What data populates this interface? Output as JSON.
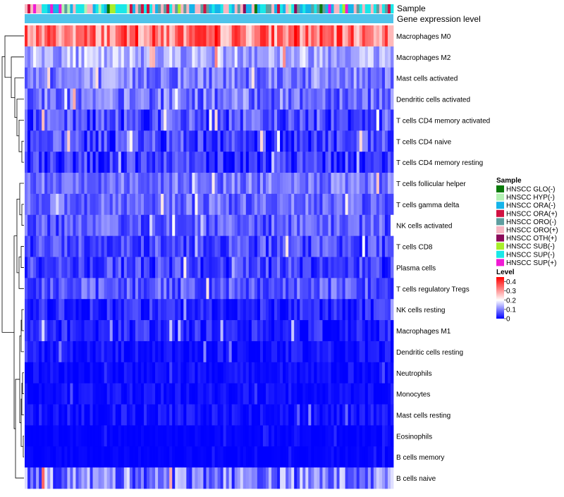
{
  "chart_data": {
    "type": "heatmap",
    "title": "",
    "annotation_tracks": [
      "Sample",
      "Gene expression level"
    ],
    "rows": [
      {
        "name": "Macrophages M0",
        "mean": 0.33,
        "spread": 0.1
      },
      {
        "name": "Macrophages M2",
        "mean": 0.14,
        "spread": 0.06
      },
      {
        "name": "Mast cells activated",
        "mean": 0.1,
        "spread": 0.06
      },
      {
        "name": "Dendritic cells activated",
        "mean": 0.09,
        "spread": 0.06
      },
      {
        "name": "T cells CD4 memory activated",
        "mean": 0.06,
        "spread": 0.06
      },
      {
        "name": "T cells CD4 naive",
        "mean": 0.05,
        "spread": 0.06
      },
      {
        "name": "T cells CD4 memory resting",
        "mean": 0.04,
        "spread": 0.06
      },
      {
        "name": "T cells follicular helper",
        "mean": 0.09,
        "spread": 0.05
      },
      {
        "name": "T cells gamma delta",
        "mean": 0.08,
        "spread": 0.05
      },
      {
        "name": "NK cells activated",
        "mean": 0.07,
        "spread": 0.05
      },
      {
        "name": "T cells CD8",
        "mean": 0.06,
        "spread": 0.05
      },
      {
        "name": "Plasma cells",
        "mean": 0.05,
        "spread": 0.05
      },
      {
        "name": "T cells regulatory  Tregs",
        "mean": 0.07,
        "spread": 0.05
      },
      {
        "name": "NK cells resting",
        "mean": 0.03,
        "spread": 0.04
      },
      {
        "name": "Macrophages M1",
        "mean": 0.03,
        "spread": 0.04
      },
      {
        "name": "Dendritic cells resting",
        "mean": 0.01,
        "spread": 0.03
      },
      {
        "name": "Neutrophils",
        "mean": 0.01,
        "spread": 0.02
      },
      {
        "name": "Monocytes",
        "mean": 0.01,
        "spread": 0.02
      },
      {
        "name": "Mast cells resting",
        "mean": 0.01,
        "spread": 0.03
      },
      {
        "name": "Eosinophils",
        "mean": 0.0,
        "spread": 0.01
      },
      {
        "name": "B cells memory",
        "mean": 0.0,
        "spread": 0.01
      },
      {
        "name": "B cells naive",
        "mean": 0.1,
        "spread": 0.08
      }
    ],
    "n_samples": 130,
    "sample_groups": [
      {
        "name": "HNSCC GLO(-)",
        "color": "#0a7a0a"
      },
      {
        "name": "HNSCC HYP(-)",
        "color": "#b3f2b3"
      },
      {
        "name": "HNSCC ORA(-)",
        "color": "#14b4ea"
      },
      {
        "name": "HNSCC ORA(+)",
        "color": "#d11142"
      },
      {
        "name": "HNSCC ORO(-)",
        "color": "#5f9ea0"
      },
      {
        "name": "HNSCC ORO(+)",
        "color": "#f7b6c2"
      },
      {
        "name": "HNSCC OTH(+)",
        "color": "#8b0a5a"
      },
      {
        "name": "HNSCC SUB(-)",
        "color": "#a8ee2a"
      },
      {
        "name": "HNSCC SUP(-)",
        "color": "#19e8e8"
      },
      {
        "name": "HNSCC SUP(+)",
        "color": "#f01ad4"
      }
    ],
    "expression_track_color": "#4fc3ea",
    "legend_sample_title": "Sample",
    "legend_level_title": "Level",
    "level_ticks": [
      "0.4",
      "0.3",
      "0.2",
      "0.1",
      "0"
    ],
    "level_range": [
      0,
      0.45
    ],
    "color_scale": {
      "low": "#0000ff",
      "mid": "#ffffff",
      "high": "#ff0000",
      "mid_value": 0.2
    }
  }
}
